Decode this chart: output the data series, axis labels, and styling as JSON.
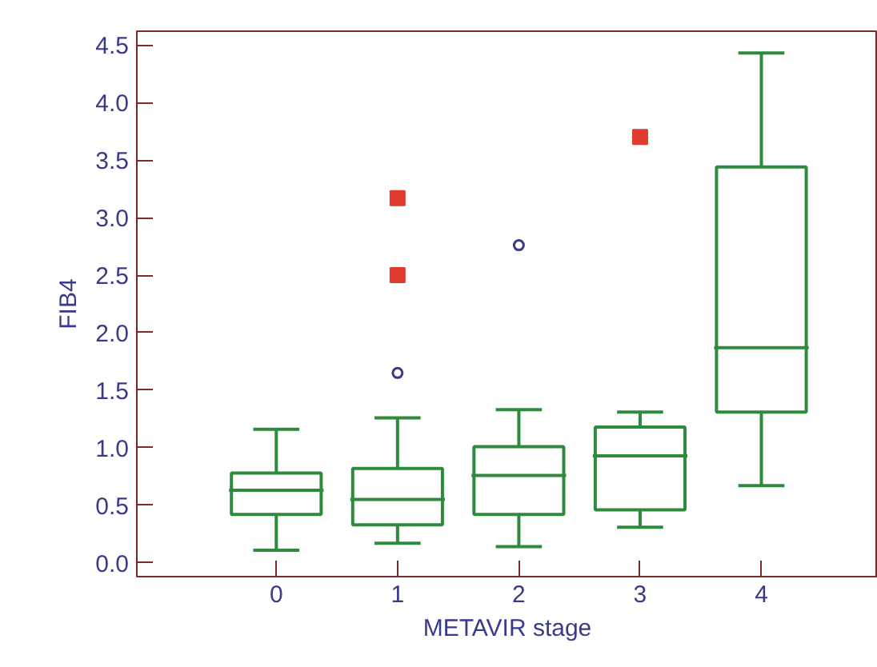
{
  "chart_data": {
    "type": "box",
    "xlabel": "METAVIR stage",
    "ylabel": "FIB4",
    "categories": [
      "0",
      "1",
      "2",
      "3",
      "4"
    ],
    "ylim": [
      -0.12,
      4.62
    ],
    "yticks": [
      {
        "value": 0,
        "label": "0.0"
      },
      {
        "value": 0.5,
        "label": "0.5"
      },
      {
        "value": 1,
        "label": "1.0"
      },
      {
        "value": 1.5,
        "label": "1.5"
      },
      {
        "value": 2,
        "label": "2.0"
      },
      {
        "value": 2.5,
        "label": "2.5"
      },
      {
        "value": 3,
        "label": "3.0"
      },
      {
        "value": 3.5,
        "label": "3.5"
      },
      {
        "value": 4,
        "label": "4.0"
      },
      {
        "value": 4.5,
        "label": "4.5"
      }
    ],
    "grid": false,
    "series": [
      {
        "color": "#2e8b3e",
        "boxes": [
          {
            "low": 0.11,
            "q1": 0.42,
            "median": 0.63,
            "q3": 0.78,
            "high": 1.16
          },
          {
            "low": 0.17,
            "q1": 0.33,
            "median": 0.55,
            "q3": 0.82,
            "high": 1.26,
            "outliers": [
              1.65
            ]
          },
          {
            "low": 0.14,
            "q1": 0.42,
            "median": 0.76,
            "q3": 1.01,
            "high": 1.33,
            "outliers": [
              2.76
            ]
          },
          {
            "low": 0.31,
            "q1": 0.46,
            "median": 0.93,
            "q3": 1.18,
            "high": 1.31
          },
          {
            "low": 0.67,
            "q1": 1.31,
            "median": 1.87,
            "q3": 3.44,
            "high": 4.43
          }
        ]
      },
      {
        "type": "scatter",
        "color": "#e03a2e",
        "marker": "square",
        "x": [
          "1",
          "1",
          "3"
        ],
        "values": [
          3.17,
          2.5,
          3.7
        ]
      }
    ]
  }
}
